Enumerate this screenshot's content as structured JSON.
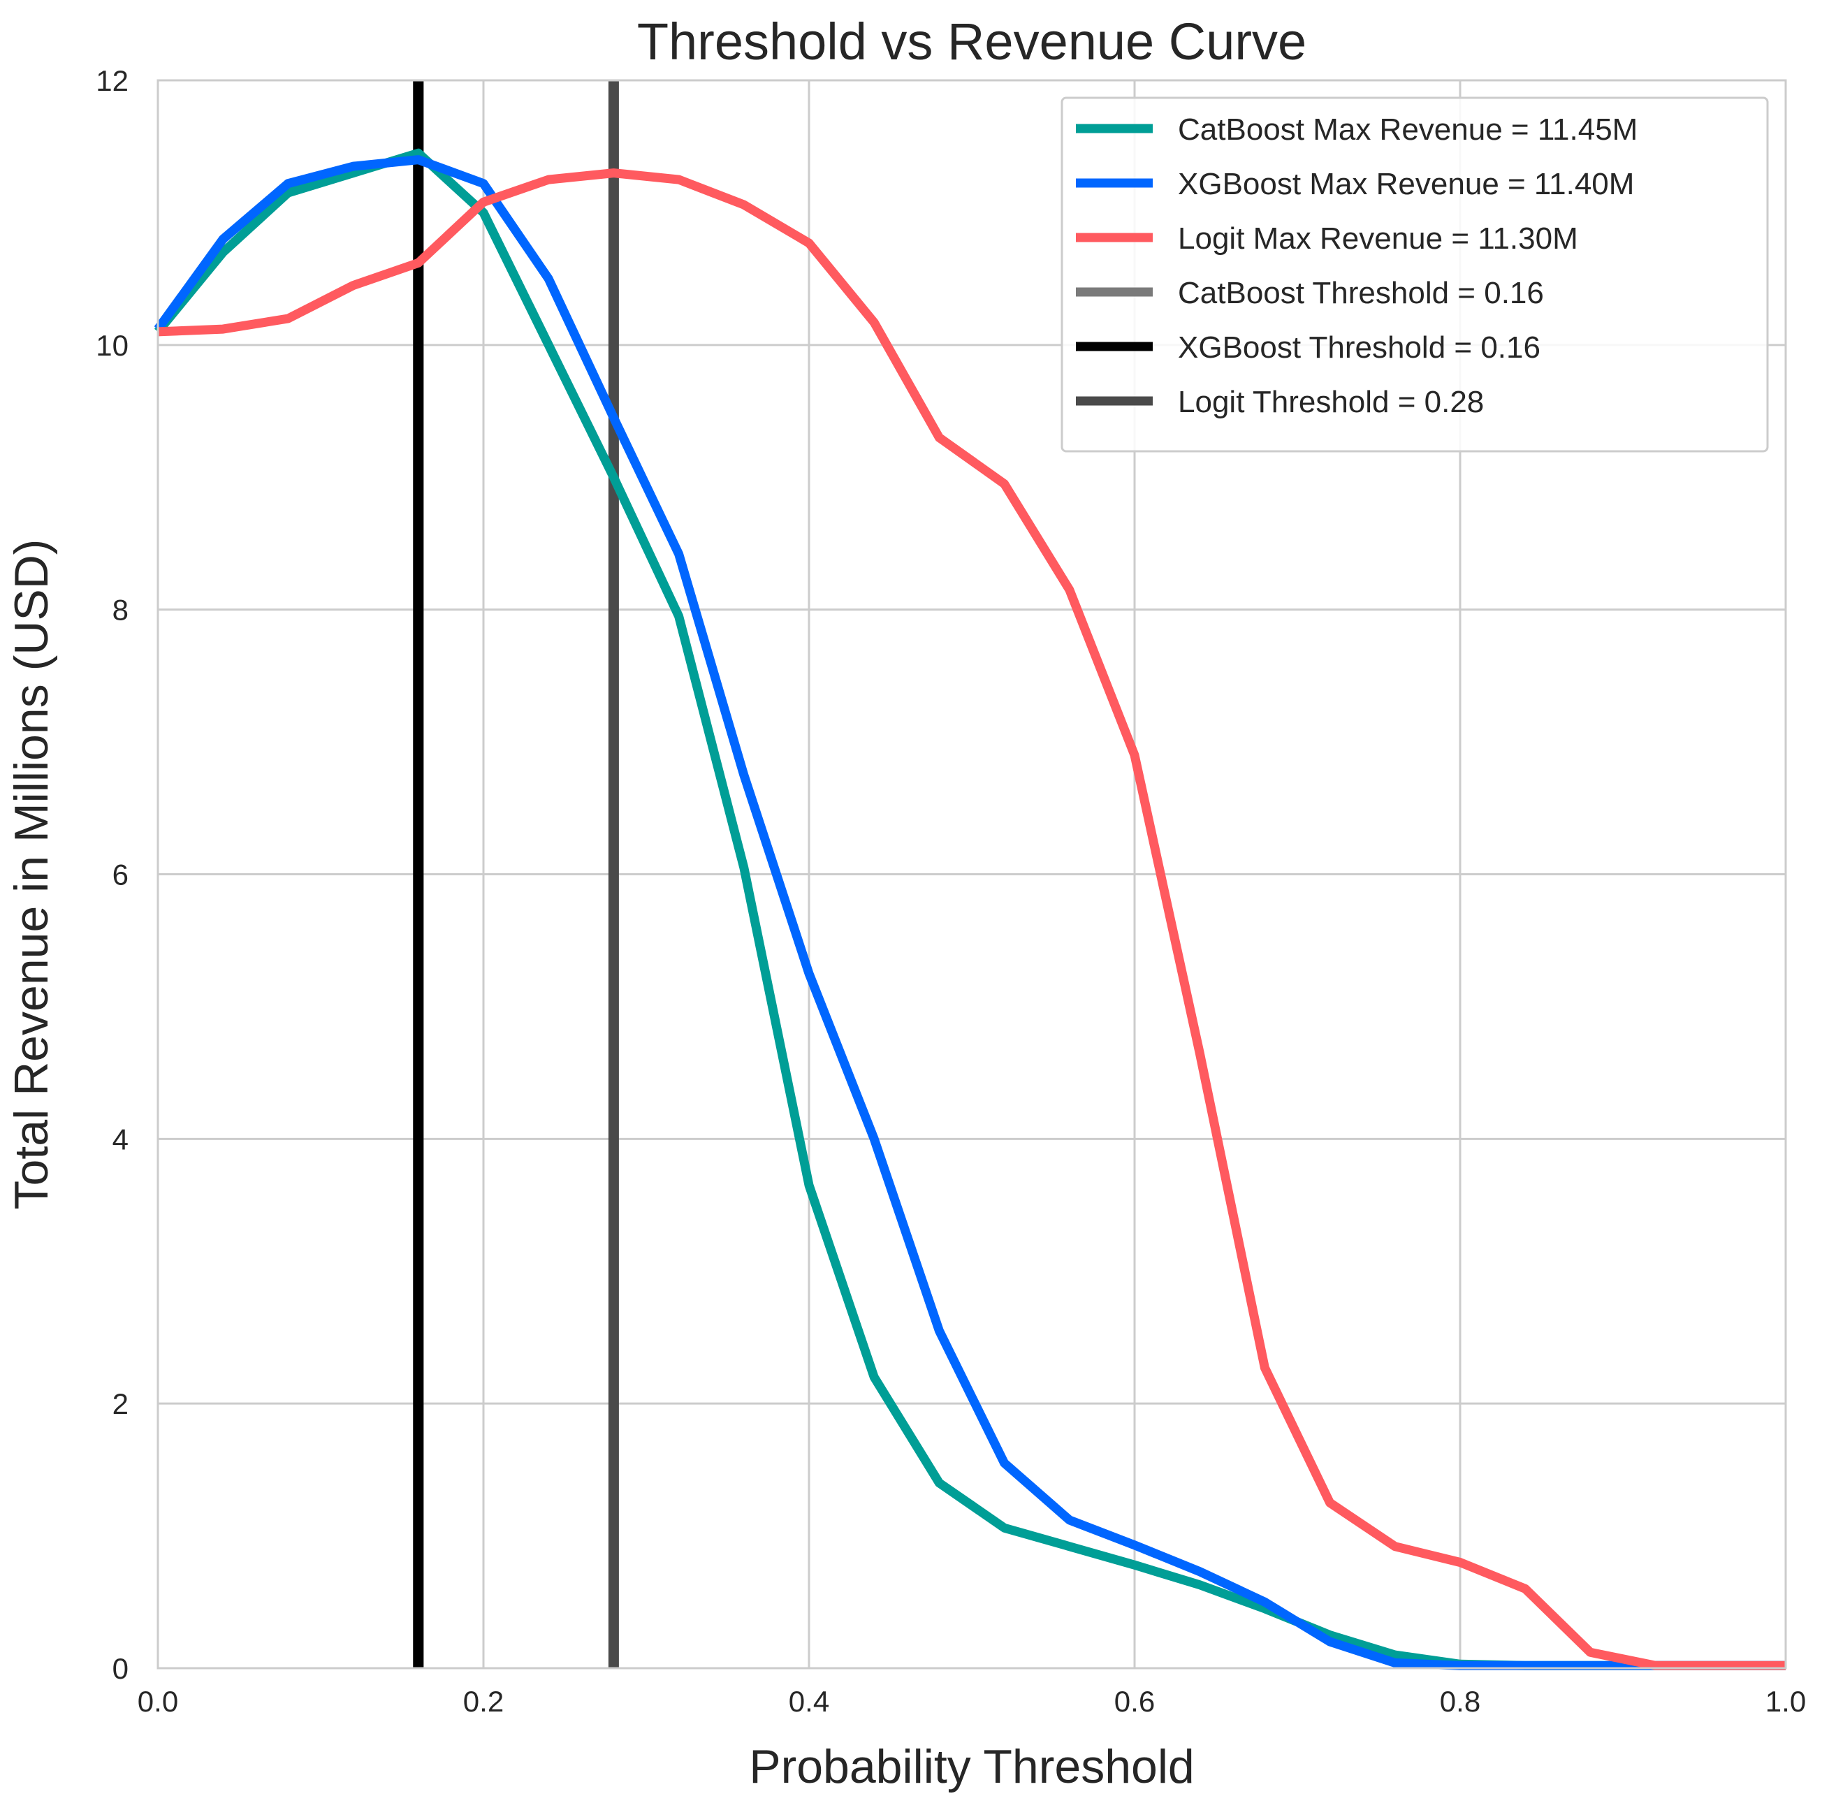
{
  "chart_data": {
    "type": "line",
    "title": "Threshold vs Revenue Curve",
    "xlabel": "Probability Threshold",
    "ylabel": "Total Revenue in Millions (USD)",
    "xlim": [
      0.0,
      1.0
    ],
    "ylim": [
      0,
      12
    ],
    "grid": true,
    "legend_position": "top-right",
    "x_ticks": [
      "0.0",
      "0.2",
      "0.4",
      "0.6",
      "0.8",
      "1.0"
    ],
    "y_ticks": [
      "0",
      "2",
      "4",
      "6",
      "8",
      "10",
      "12"
    ],
    "x": [
      0.0,
      0.04,
      0.08,
      0.12,
      0.16,
      0.2,
      0.24,
      0.28,
      0.32,
      0.36,
      0.4,
      0.44,
      0.48,
      0.52,
      0.56,
      0.6,
      0.64,
      0.68,
      0.72,
      0.76,
      0.8,
      0.84,
      0.88,
      0.92,
      0.96,
      1.0
    ],
    "series": [
      {
        "name": "CatBoost Max Revenue = 11.45M",
        "color": "#009e96",
        "values": [
          10.1,
          10.7,
          11.15,
          11.3,
          11.45,
          11.0,
          10.0,
          9.0,
          7.95,
          6.05,
          3.65,
          2.2,
          1.4,
          1.06,
          0.92,
          0.78,
          0.63,
          0.45,
          0.25,
          0.1,
          0.03,
          0.02,
          0.02,
          0.02,
          0.02,
          0.02
        ]
      },
      {
        "name": "XGBoost Max Revenue = 11.40M",
        "color": "#0066ff",
        "values": [
          10.12,
          10.8,
          11.22,
          11.35,
          11.4,
          11.22,
          10.5,
          9.45,
          8.42,
          6.75,
          5.25,
          4.0,
          2.55,
          1.55,
          1.12,
          0.93,
          0.73,
          0.5,
          0.2,
          0.04,
          0.02,
          0.02,
          0.02,
          0.02,
          0.02,
          0.02
        ]
      },
      {
        "name": "Logit Max Revenue = 11.30M",
        "color": "#ff5a5f",
        "values": [
          10.1,
          10.12,
          10.2,
          10.45,
          10.62,
          11.08,
          11.25,
          11.3,
          11.25,
          11.06,
          10.77,
          10.17,
          9.3,
          8.95,
          8.15,
          6.9,
          4.65,
          2.27,
          1.25,
          0.92,
          0.8,
          0.6,
          0.12,
          0.02,
          0.02,
          0.02
        ]
      }
    ],
    "vlines": [
      {
        "name": "CatBoost Threshold = 0.16",
        "x": 0.16,
        "color": "#7a7a7a"
      },
      {
        "name": "XGBoost Threshold = 0.16",
        "x": 0.16,
        "color": "#000000"
      },
      {
        "name": "Logit Threshold = 0.28",
        "x": 0.28,
        "color": "#4a4a4a"
      }
    ]
  }
}
